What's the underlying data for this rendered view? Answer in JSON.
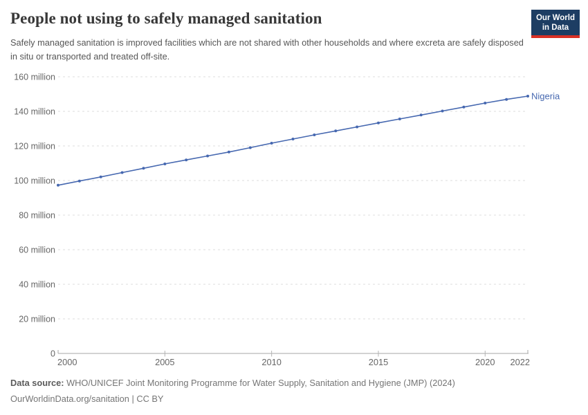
{
  "header": {
    "title": "People not using to safely managed sanitation",
    "subtitle": "Safely managed sanitation is improved facilities which are not shared with other households and where excreta are safely disposed in situ or transported and treated off-site.",
    "logo": {
      "line1": "Our World",
      "line2": "in Data",
      "bg_color": "#1d3d63",
      "accent_color": "#d93025"
    }
  },
  "chart_data": {
    "type": "line",
    "title": "People not using to safely managed sanitation",
    "xlabel": "",
    "ylabel": "",
    "xlim": [
      2000,
      2022
    ],
    "ylim": [
      0,
      160
    ],
    "grid": "horizontal-dashed",
    "markers": true,
    "legend_position": "line-end-label",
    "x": [
      2000,
      2001,
      2002,
      2003,
      2004,
      2005,
      2006,
      2007,
      2008,
      2009,
      2010,
      2011,
      2012,
      2013,
      2014,
      2015,
      2016,
      2017,
      2018,
      2019,
      2020,
      2021,
      2022
    ],
    "series": [
      {
        "name": "Nigeria",
        "color": "#4668b0",
        "values_millions": [
          97.3,
          99.7,
          102.1,
          104.6,
          107.1,
          109.6,
          111.9,
          114.2,
          116.5,
          119.0,
          121.6,
          124.0,
          126.4,
          128.7,
          131.0,
          133.3,
          135.6,
          137.9,
          140.2,
          142.5,
          144.8,
          146.9,
          148.8
        ]
      }
    ],
    "x_ticks": [
      2000,
      2005,
      2010,
      2015,
      2020,
      2022
    ],
    "y_ticks": [
      {
        "value": 160,
        "label": "160 million"
      },
      {
        "value": 140,
        "label": "140 million"
      },
      {
        "value": 120,
        "label": "120 million"
      },
      {
        "value": 100,
        "label": "100 million"
      },
      {
        "value": 80,
        "label": "80 million"
      },
      {
        "value": 60,
        "label": "60 million"
      },
      {
        "value": 40,
        "label": "40 million"
      },
      {
        "value": 20,
        "label": "20 million"
      },
      {
        "value": 0,
        "label": "0"
      }
    ]
  },
  "footer": {
    "source_label": "Data source:",
    "source_text": "WHO/UNICEF Joint Monitoring Programme for Water Supply, Sanitation and Hygiene (JMP) (2024)",
    "license_text": "OurWorldinData.org/sanitation | CC BY"
  }
}
